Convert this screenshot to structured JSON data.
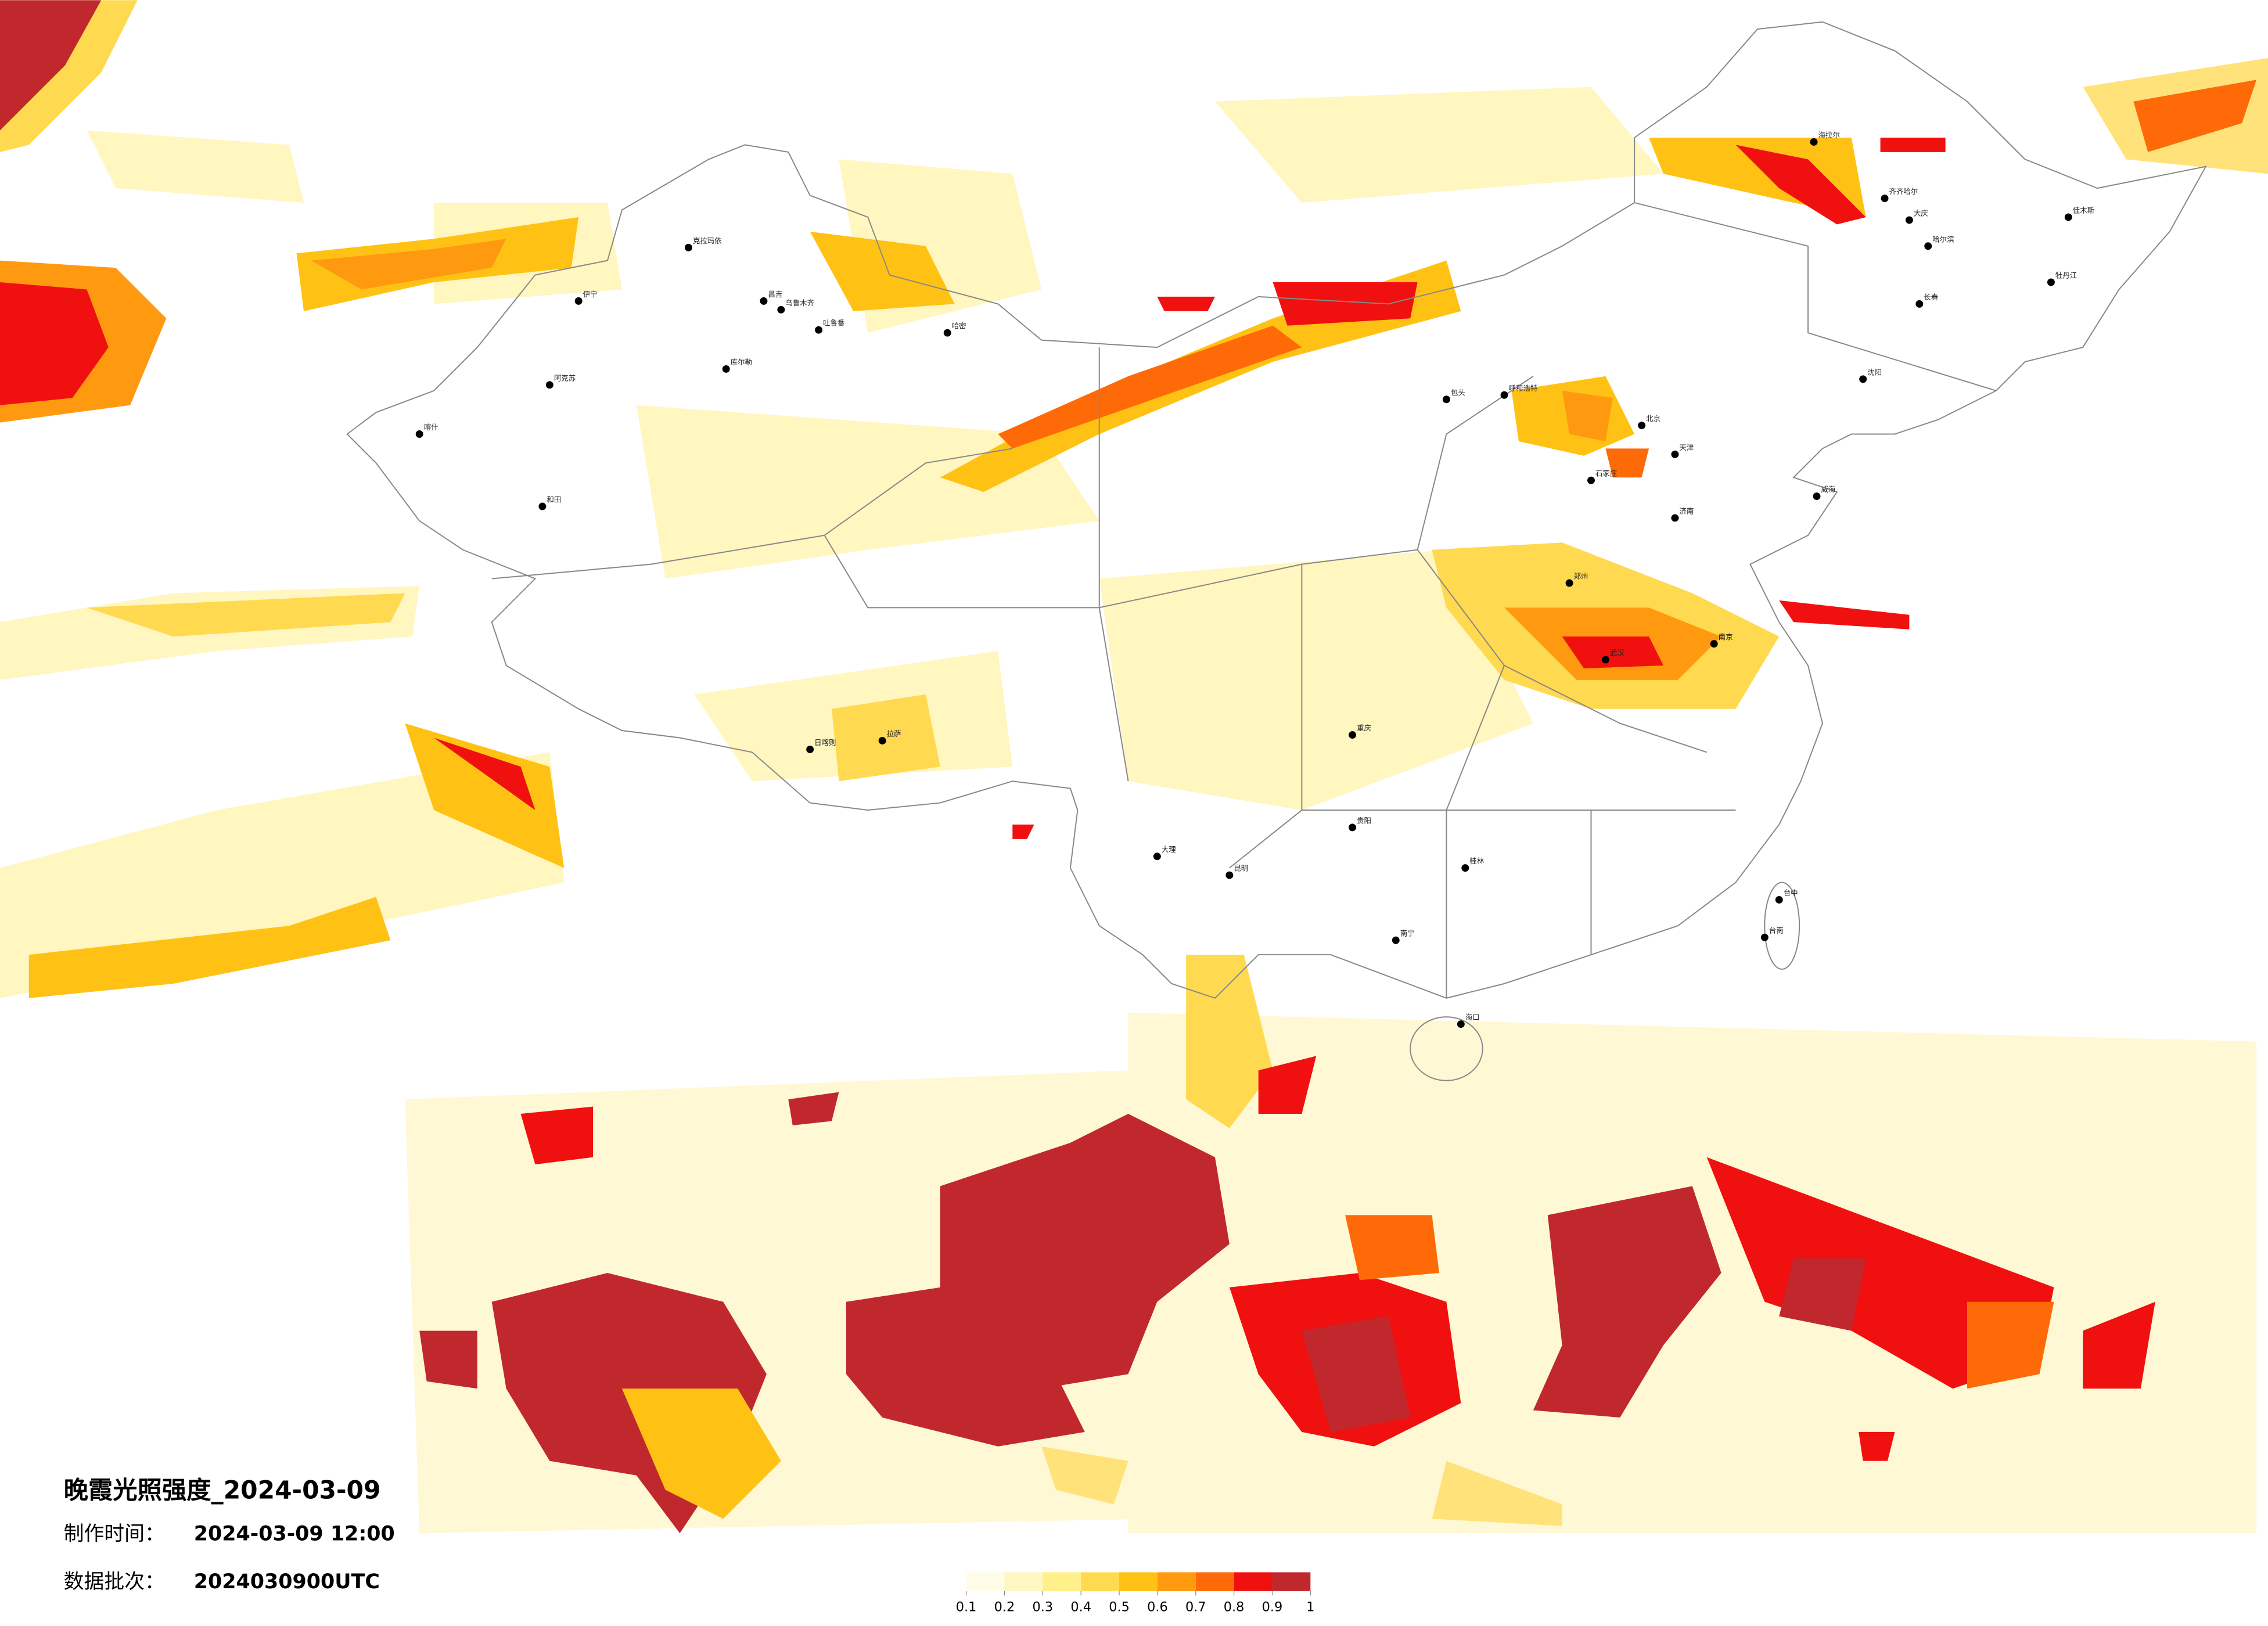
{
  "title": "晚霞光照强度_2024-03-09",
  "made_label": "制作时间：",
  "made_time": "2024-03-09 12:00",
  "batch_label": "数据批次：",
  "batch": "2024030900UTC",
  "colorbar": {
    "ticks": [
      0.1,
      0.2,
      0.3,
      0.4,
      0.5,
      0.6,
      0.7,
      0.8,
      0.9,
      1
    ],
    "colors": [
      "#fffde8",
      "#fff7c2",
      "#fff08a",
      "#ffd94f",
      "#ffc214",
      "#ff9a10",
      "#ff6a08",
      "#f01010",
      "#c0282e"
    ]
  },
  "cities": [
    "伊宁",
    "克拉玛依",
    "昌吉",
    "乌鲁木齐",
    "吐鲁番",
    "哈密",
    "库尔勒",
    "阿克苏",
    "喀什",
    "和田",
    "日喀则",
    "拉萨",
    "海拉尔",
    "齐齐哈尔",
    "大庆",
    "哈尔滨",
    "佳木斯",
    "牡丹江",
    "长春",
    "沈阳",
    "呼和浩特",
    "包头",
    "北京",
    "天津",
    "石家庄",
    "济南",
    "威海",
    "郑州",
    "武汉",
    "南京",
    "重庆",
    "贵阳",
    "昆明",
    "大理",
    "桂林",
    "南宁",
    "海口",
    "台中",
    "台南"
  ]
}
